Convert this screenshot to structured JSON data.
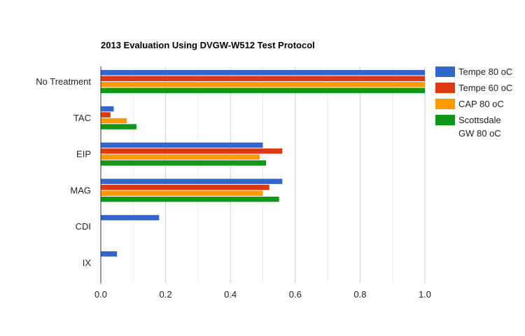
{
  "chart_data": {
    "type": "bar",
    "orientation": "horizontal",
    "title": "2013 Evaluation Using DVGW-W512 Test Protocol",
    "categories": [
      "No Treatment",
      "TAC",
      "EIP",
      "MAG",
      "CDI",
      "IX"
    ],
    "series": [
      {
        "name": "Tempe 80 oC",
        "color": "#3366cc",
        "values": [
          1.0,
          0.04,
          0.5,
          0.56,
          0.18,
          0.05
        ]
      },
      {
        "name": "Tempe 60 oC",
        "color": "#dc3912",
        "values": [
          1.0,
          0.03,
          0.56,
          0.52,
          0,
          0
        ]
      },
      {
        "name": "CAP 80 oC",
        "color": "#ff9900",
        "values": [
          1.0,
          0.08,
          0.49,
          0.5,
          0,
          0
        ]
      },
      {
        "name": "Scottsdale GW 80 oC",
        "color": "#109618",
        "values": [
          1.0,
          0.11,
          0.51,
          0.55,
          0,
          0
        ]
      }
    ],
    "xlim": [
      0,
      1.0
    ],
    "xticks": [
      "0.0",
      "0.2",
      "0.4",
      "0.6",
      "0.8",
      "1.0"
    ],
    "xtick_values": [
      0,
      0.2,
      0.4,
      0.6,
      0.8,
      1.0
    ],
    "grid": true,
    "legend": "right"
  }
}
